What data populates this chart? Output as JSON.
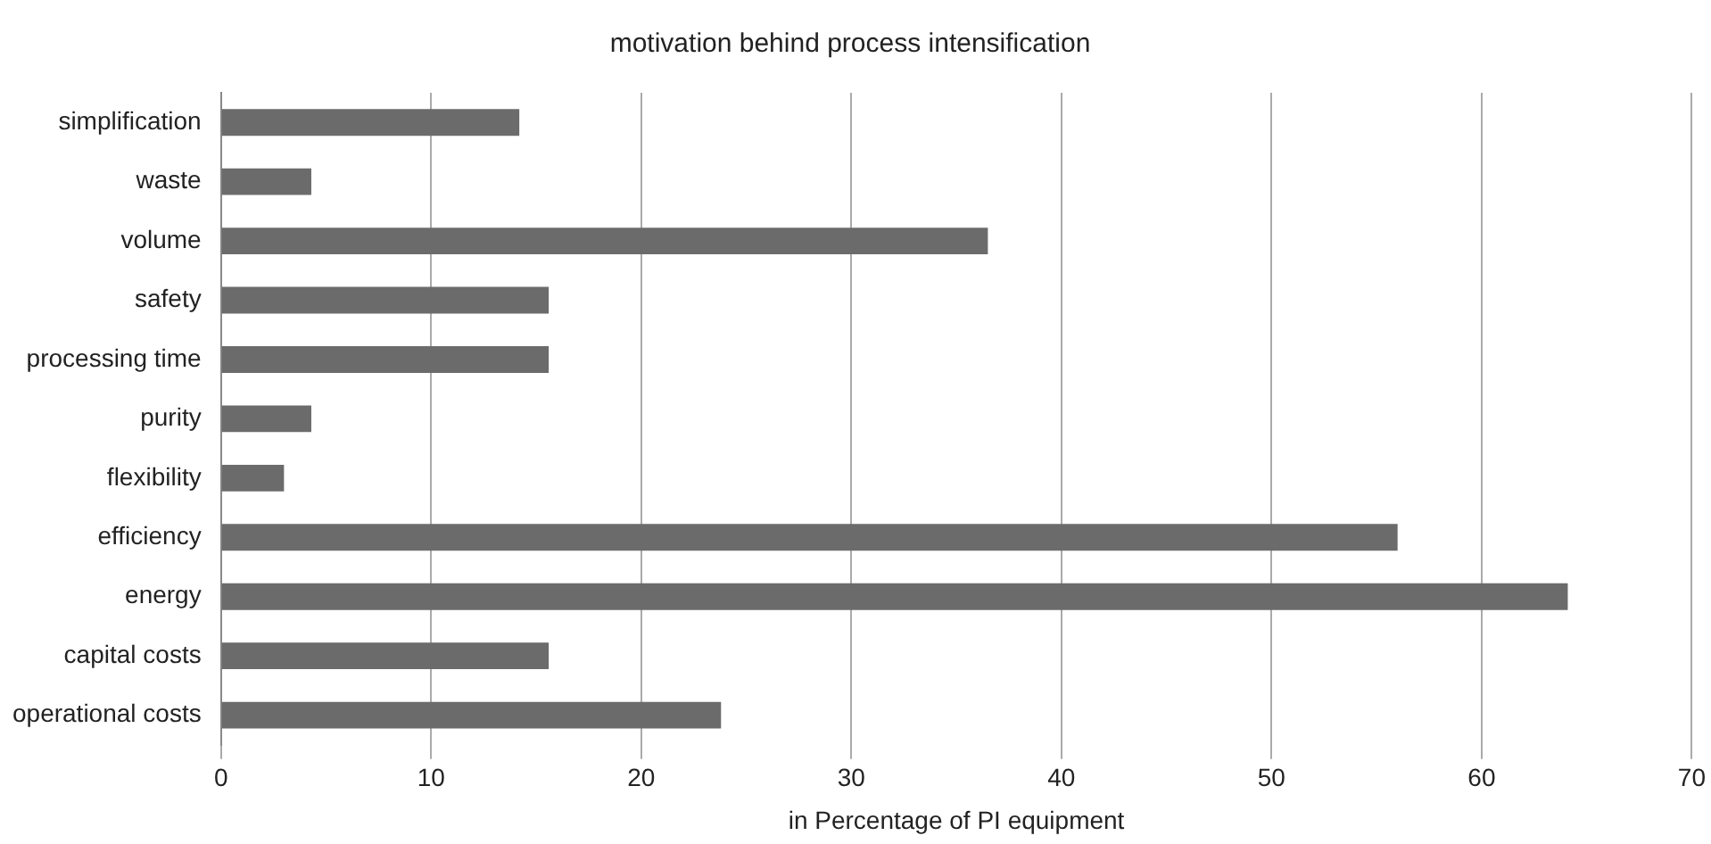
{
  "chart_data": {
    "type": "bar",
    "orientation": "horizontal",
    "title": "motivation behind process intensification",
    "xlabel": "in Percentage of PI equipment",
    "categories": [
      "simplification",
      "waste",
      "volume",
      "safety",
      "processing time",
      "purity",
      "flexibility",
      "efficiency",
      "energy",
      "capital costs",
      "operational costs"
    ],
    "values": [
      14.2,
      4.3,
      36.5,
      15.6,
      15.6,
      4.3,
      3.0,
      56.0,
      64.1,
      15.6,
      23.8
    ],
    "color": "#6b6b6b",
    "xlim": [
      0,
      70
    ],
    "xticks": [
      0,
      10,
      20,
      30,
      40,
      50,
      60,
      70
    ],
    "grid": "x",
    "legend": false
  }
}
